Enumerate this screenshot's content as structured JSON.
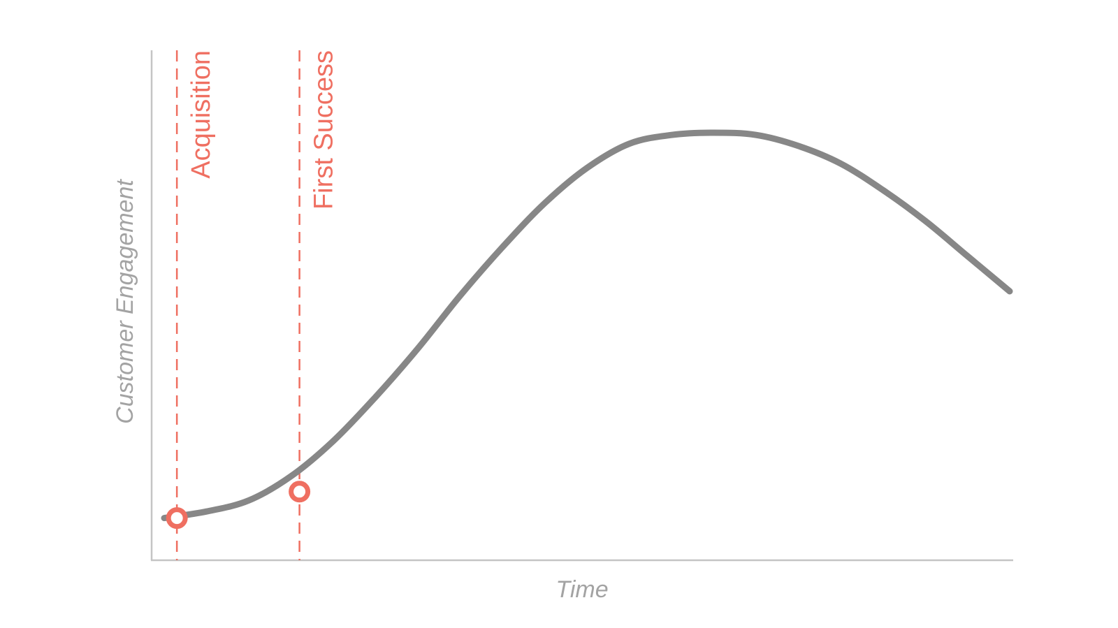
{
  "chart_data": {
    "type": "line",
    "title": "",
    "xlabel": "Time",
    "ylabel": "Customer Engagement",
    "xlim": [
      0,
      100
    ],
    "ylim": [
      0,
      100
    ],
    "grid": false,
    "series": [
      {
        "x": [
          0,
          5,
          10,
          15,
          20,
          25,
          30,
          35,
          40,
          45,
          50,
          55,
          60,
          65,
          70,
          75,
          80,
          85,
          90,
          95,
          100
        ],
        "values": [
          4.5,
          6.0,
          8.5,
          14,
          22,
          32,
          43,
          55,
          66,
          76,
          84,
          89.5,
          91.5,
          92,
          91.5,
          89,
          85,
          79,
          72,
          64,
          56
        ],
        "color": "#878787"
      }
    ],
    "markers": [
      {
        "label": "Acquisition",
        "x": 1.5,
        "y": 4.5
      },
      {
        "label": "First Success",
        "x": 16,
        "y": 10.5
      }
    ],
    "colors": {
      "curve": "#878787",
      "marker": "#ef6f61",
      "axis": "#c4c4c4",
      "axis_text": "#a3a3a3"
    }
  }
}
